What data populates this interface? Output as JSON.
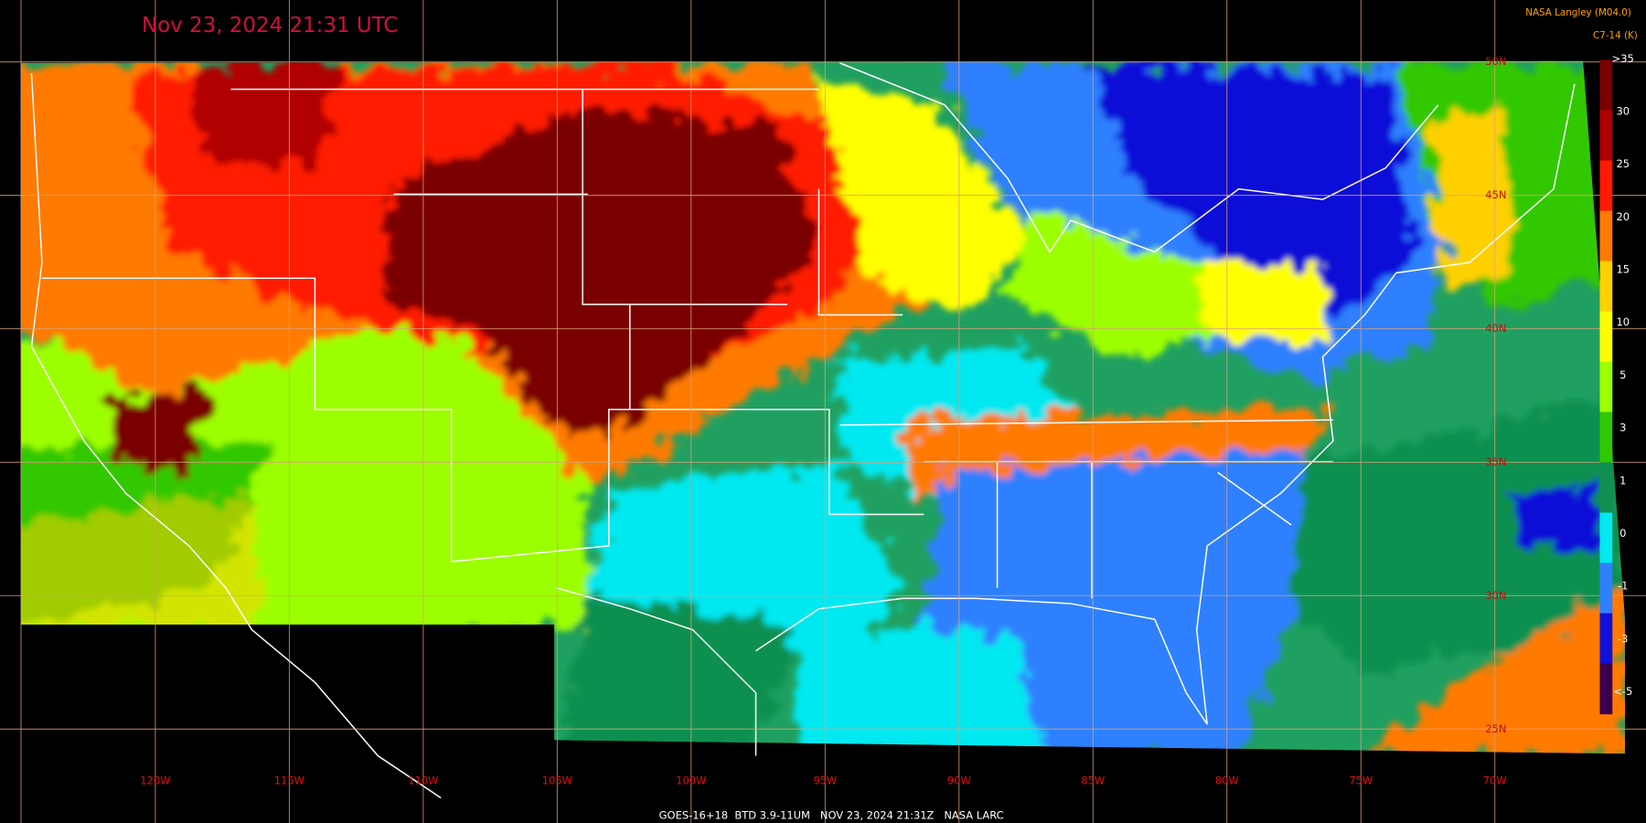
{
  "title": "Nov 23, 2024 21:31 UTC",
  "credit": "NASA Langley (M04.0)",
  "product": "C7-14 (K)",
  "footer": "GOES-16+18  BTD 3.9-11UM   NOV 23, 2024 21:31Z   NASA LARC",
  "longitude_labels": [
    "120W",
    "115W",
    "110W",
    "105W",
    "100W",
    "95W",
    "90W",
    "85W",
    "80W",
    "75W",
    "70W"
  ],
  "latitude_labels": [
    "50N",
    "45N",
    "40N",
    "35N",
    "30N",
    "25N"
  ],
  "colorbar": {
    "labels": [
      ">35",
      "30",
      "25",
      "20",
      "15",
      "10",
      "5",
      "3",
      "1",
      "0",
      "-1",
      "-3",
      "<-5"
    ],
    "colors": [
      "#7a0000",
      "#b00000",
      "#ff1a00",
      "#ff7a00",
      "#ffd000",
      "#ffff00",
      "#9cff00",
      "#30c800",
      "#109050",
      "#00e8f0",
      "#2f80ff",
      "#1010d8",
      "#3a0050"
    ]
  }
}
